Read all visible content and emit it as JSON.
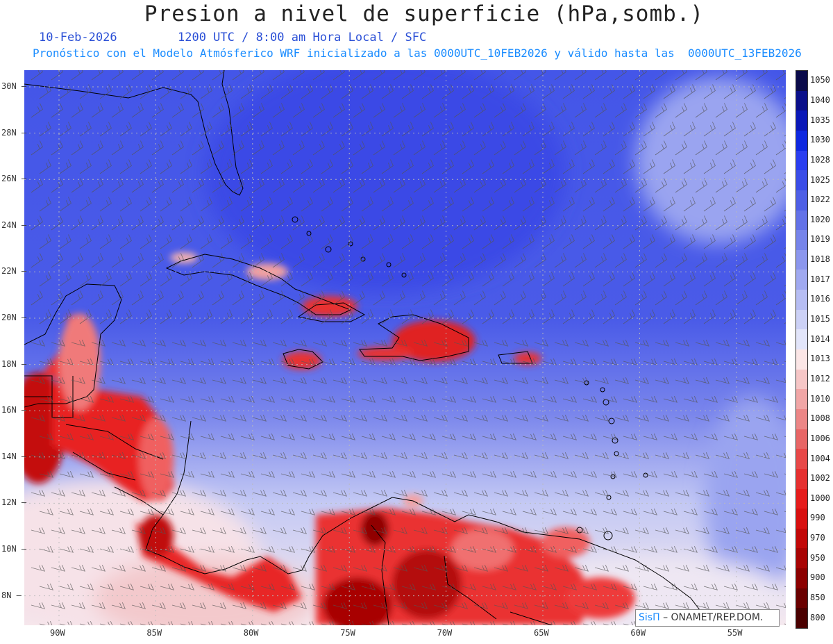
{
  "header": {
    "title": "Presion a nivel de superficie (hPa,somb.)",
    "date": "10-Feb-2026",
    "time_line": "1200 UTC / 8:00 am Hora Local / SFC",
    "forecast_line": "Pronóstico con el Modelo Atmósferico WRF inicializado a las 0000UTC_10FEB2026 y válido hasta las  0000UTC_13FEB2026"
  },
  "map": {
    "lat_labels": [
      "30N",
      "28N",
      "26N",
      "24N",
      "22N",
      "20N",
      "18N",
      "16N",
      "14N",
      "12N",
      "10N",
      "8N"
    ],
    "lon_labels": [
      "90W",
      "85W",
      "80W",
      "75W",
      "70W",
      "65W",
      "60W",
      "55W"
    ],
    "colors": {
      "high": "#3a4de8",
      "mid": "#8a96ee",
      "neutral": "#f4f4fb",
      "low": "#ee2222",
      "very_low": "#8b0000"
    }
  },
  "legend": {
    "levels": [
      "1050",
      "1040",
      "1035",
      "1030",
      "1028",
      "1025",
      "1022",
      "1020",
      "1019",
      "1018",
      "1017",
      "1016",
      "1015",
      "1014",
      "1013",
      "1012",
      "1010",
      "1008",
      "1006",
      "1004",
      "1002",
      "1000",
      "990",
      "970",
      "950",
      "900",
      "850",
      "800"
    ],
    "colors": [
      "#0b0b4a",
      "#0a0f8a",
      "#0a18b8",
      "#0e28e0",
      "#2a3ef0",
      "#3a4de8",
      "#4e5fe6",
      "#6372e8",
      "#7684ea",
      "#8b96ed",
      "#a0a9f0",
      "#b6bdf3",
      "#ccd1f6",
      "#e2e5fa",
      "#fbe6e6",
      "#f6c6c6",
      "#f1a6a6",
      "#ec8686",
      "#e86666",
      "#e84848",
      "#e63030",
      "#e61c1c",
      "#d81010",
      "#c20808",
      "#a80404",
      "#8c0000",
      "#6a0000",
      "#4a0000"
    ]
  },
  "credit": {
    "logo": "SisΠ",
    "org": "– ONAMET/REP.DOM."
  }
}
